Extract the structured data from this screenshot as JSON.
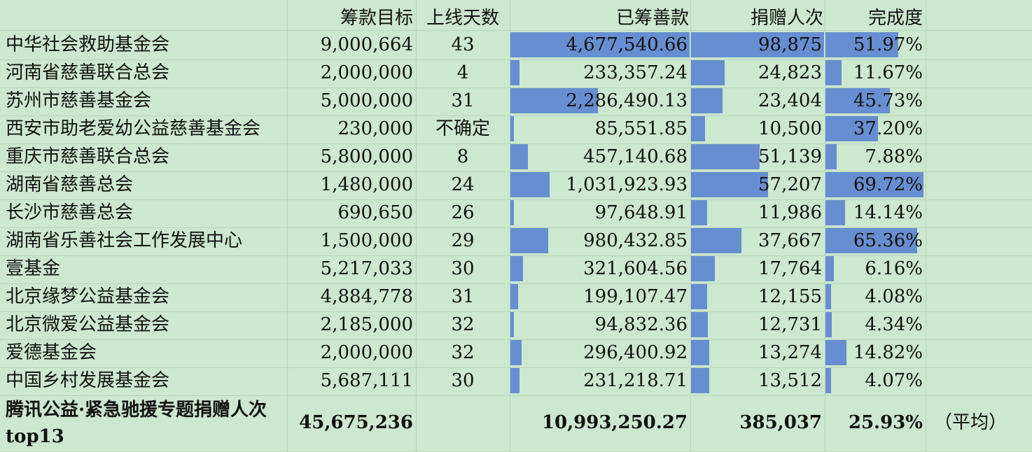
{
  "chart_data": {
    "type": "table",
    "columns": [
      "",
      "筹款目标",
      "上线天数",
      "已筹善款",
      "捐赠人次",
      "完成度"
    ],
    "rows": [
      {
        "name": "中华社会救助基金会",
        "target": "9,000,664",
        "days": "43",
        "raised": "4,677,540.66",
        "donors": "98,875",
        "rate": "51.97%",
        "raised_v": 4677540.66,
        "donors_v": 98875,
        "rate_v": 51.97
      },
      {
        "name": "河南省慈善联合总会",
        "target": "2,000,000",
        "days": "4",
        "raised": "233,357.24",
        "donors": "24,823",
        "rate": "11.67%",
        "raised_v": 233357.24,
        "donors_v": 24823,
        "rate_v": 11.67
      },
      {
        "name": "苏州市慈善基金会",
        "target": "5,000,000",
        "days": "31",
        "raised": "2,286,490.13",
        "donors": "23,404",
        "rate": "45.73%",
        "raised_v": 2286490.13,
        "donors_v": 23404,
        "rate_v": 45.73
      },
      {
        "name": "西安市助老爱幼公益慈善基金会",
        "target": "230,000",
        "days": "不确定",
        "raised": "85,551.85",
        "donors": "10,500",
        "rate": "37.20%",
        "raised_v": 85551.85,
        "donors_v": 10500,
        "rate_v": 37.2
      },
      {
        "name": "重庆市慈善联合总会",
        "target": "5,800,000",
        "days": "8",
        "raised": "457,140.68",
        "donors": "51,139",
        "rate": "7.88%",
        "raised_v": 457140.68,
        "donors_v": 51139,
        "rate_v": 7.88
      },
      {
        "name": "湖南省慈善总会",
        "target": "1,480,000",
        "days": "24",
        "raised": "1,031,923.93",
        "donors": "57,207",
        "rate": "69.72%",
        "raised_v": 1031923.93,
        "donors_v": 57207,
        "rate_v": 69.72
      },
      {
        "name": "长沙市慈善总会",
        "target": "690,650",
        "days": "26",
        "raised": "97,648.91",
        "donors": "11,986",
        "rate": "14.14%",
        "raised_v": 97648.91,
        "donors_v": 11986,
        "rate_v": 14.14
      },
      {
        "name": "湖南省乐善社会工作发展中心",
        "target": "1,500,000",
        "days": "29",
        "raised": "980,432.85",
        "donors": "37,667",
        "rate": "65.36%",
        "raised_v": 980432.85,
        "donors_v": 37667,
        "rate_v": 65.36
      },
      {
        "name": "壹基金",
        "target": "5,217,033",
        "days": "30",
        "raised": "321,604.56",
        "donors": "17,764",
        "rate": "6.16%",
        "raised_v": 321604.56,
        "donors_v": 17764,
        "rate_v": 6.16
      },
      {
        "name": "北京缘梦公益基金会",
        "target": "4,884,778",
        "days": "31",
        "raised": "199,107.47",
        "donors": "12,155",
        "rate": "4.08%",
        "raised_v": 199107.47,
        "donors_v": 12155,
        "rate_v": 4.08
      },
      {
        "name": "北京微爱公益基金会",
        "target": "2,185,000",
        "days": "32",
        "raised": "94,832.36",
        "donors": "12,731",
        "rate": "4.34%",
        "raised_v": 94832.36,
        "donors_v": 12731,
        "rate_v": 4.34
      },
      {
        "name": "爱德基金会",
        "target": "2,000,000",
        "days": "32",
        "raised": "296,400.92",
        "donors": "13,274",
        "rate": "14.82%",
        "raised_v": 296400.92,
        "donors_v": 13274,
        "rate_v": 14.82
      },
      {
        "name": "中国乡村发展基金会",
        "target": "5,687,111",
        "days": "30",
        "raised": "231,218.71",
        "donors": "13,512",
        "rate": "4.07%",
        "raised_v": 231218.71,
        "donors_v": 13512,
        "rate_v": 4.07
      }
    ],
    "totals": {
      "label": "腾讯公益·紧急驰援专题捐赠人次top13",
      "target": "45,675,236",
      "raised": "10,993,250.27",
      "donors": "385,037",
      "rate": "25.93%",
      "note": "（平均）"
    },
    "bar_color": "#668ed0",
    "background": "#cce8cf"
  }
}
